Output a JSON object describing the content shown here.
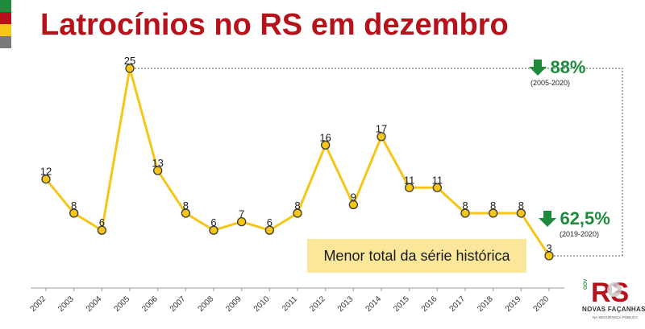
{
  "header": {
    "title": "Latrocínios no RS em dezembro",
    "stripe_colors": [
      "#1e8b3c",
      "#b5121b",
      "#f5c518",
      "#7a7a7a"
    ]
  },
  "chart_data": {
    "type": "line",
    "title": "Latrocínios no RS em dezembro",
    "xlabel": "",
    "ylabel": "",
    "ylim": [
      0,
      26
    ],
    "grid": false,
    "categories": [
      "2002",
      "2003",
      "2004",
      "2005",
      "2006",
      "2007",
      "2008",
      "2009",
      "2010",
      "2011",
      "2012",
      "2013",
      "2014",
      "2015",
      "2016",
      "2017",
      "2018",
      "2019",
      "2020"
    ],
    "series": [
      {
        "values": [
          12,
          8,
          6,
          25,
          13,
          8,
          6,
          7,
          6,
          8,
          16,
          9,
          17,
          11,
          11,
          8,
          8,
          8,
          3
        ]
      }
    ],
    "line_color": "#f5c518",
    "marker_fill": "#f5c518",
    "marker_stroke": "#3a3a3a"
  },
  "annotations": {
    "drop_total": {
      "value": "88%",
      "period": "(2005-2020)",
      "color": "#1e8b3c",
      "icon": "arrow-down-icon"
    },
    "drop_year": {
      "value": "62,5%",
      "period": "(2019-2020)",
      "color": "#1e8b3c",
      "icon": "arrow-down-icon"
    },
    "callout": "Menor total da série histórica"
  },
  "logo": {
    "tag": "GOV",
    "mark": "RS",
    "text": "NOVAS FAÇANHAS",
    "subtext": "NA SEGURANÇA PÚBLICA"
  }
}
